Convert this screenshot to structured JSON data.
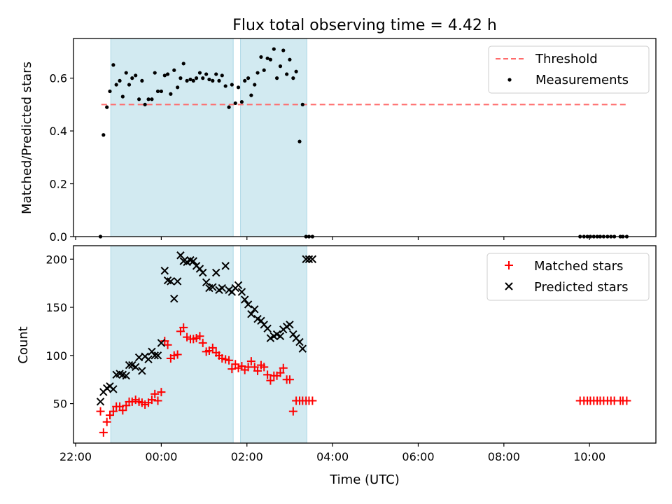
{
  "title": "Flux total observing time = 4.42 h",
  "xlabel": "Time (UTC)",
  "colors": {
    "background": "#ffffff",
    "shade": "#add8e6",
    "threshold": "#ff6b6b",
    "measurement": "#000000",
    "matched": "#ff0000",
    "predicted": "#000000"
  },
  "chart_data": [
    {
      "type": "scatter",
      "title": "Flux total observing time = 4.42 h",
      "ylabel": "Matched/Predicted stars",
      "xlabel": "",
      "x_unit": "hours since 00:00 UTC",
      "xlim": [
        -2.05,
        11.55
      ],
      "ylim": [
        0,
        0.75
      ],
      "yticks": [
        0.0,
        0.2,
        0.4,
        0.6
      ],
      "ytick_labels": [
        "0.0",
        "0.2",
        "0.4",
        "0.6"
      ],
      "grid": false,
      "legend": {
        "placement": "top-right",
        "entries": [
          "Threshold",
          "Measurements"
        ]
      },
      "threshold": {
        "name": "Threshold",
        "y": 0.5,
        "x_start": -1.4,
        "x_end": 10.9,
        "style": "dashed"
      },
      "shaded_regions": [
        [
          -1.18,
          1.68
        ],
        [
          1.85,
          3.4
        ]
      ],
      "series": [
        {
          "name": "Measurements",
          "marker": "dot",
          "x": [
            -1.42,
            -1.35,
            -1.27,
            -1.2,
            -1.12,
            -1.05,
            -0.97,
            -0.9,
            -0.82,
            -0.75,
            -0.68,
            -0.6,
            -0.52,
            -0.45,
            -0.38,
            -0.3,
            -0.22,
            -0.15,
            -0.08,
            0.0,
            0.08,
            0.15,
            0.22,
            0.3,
            0.38,
            0.45,
            0.52,
            0.6,
            0.68,
            0.75,
            0.82,
            0.9,
            0.97,
            1.05,
            1.12,
            1.2,
            1.28,
            1.35,
            1.42,
            1.5,
            1.58,
            1.65,
            1.73,
            1.8,
            1.88,
            1.95,
            2.03,
            2.1,
            2.18,
            2.25,
            2.33,
            2.4,
            2.48,
            2.55,
            2.63,
            2.7,
            2.78,
            2.85,
            2.93,
            3.0,
            3.08,
            3.15,
            3.23,
            3.3,
            3.38,
            3.45,
            3.53,
            9.78,
            9.87,
            9.95,
            10.02,
            10.1,
            10.18,
            10.25,
            10.33,
            10.42,
            10.5,
            10.58,
            10.72,
            10.78,
            10.87
          ],
          "y": [
            0.0,
            0.385,
            0.49,
            0.55,
            0.65,
            0.575,
            0.59,
            0.53,
            0.62,
            0.575,
            0.6,
            0.61,
            0.52,
            0.59,
            0.5,
            0.52,
            0.52,
            0.62,
            0.55,
            0.55,
            0.61,
            0.615,
            0.54,
            0.63,
            0.565,
            0.6,
            0.655,
            0.59,
            0.595,
            0.59,
            0.6,
            0.62,
            0.6,
            0.615,
            0.595,
            0.59,
            0.615,
            0.59,
            0.61,
            0.57,
            0.49,
            0.575,
            0.505,
            0.565,
            0.51,
            0.59,
            0.6,
            0.535,
            0.575,
            0.62,
            0.68,
            0.63,
            0.675,
            0.67,
            0.71,
            0.6,
            0.645,
            0.705,
            0.615,
            0.67,
            0.6,
            0.625,
            0.36,
            0.5,
            0.0,
            0.0,
            0.0,
            0.0,
            0.0,
            0.0,
            0.0,
            0.0,
            0.0,
            0.0,
            0.0,
            0.0,
            0.0,
            0.0,
            0.0,
            0.0,
            0.0
          ]
        }
      ]
    },
    {
      "type": "scatter",
      "ylabel": "Count",
      "xlabel": "Time (UTC)",
      "x_unit": "hours since 00:00 UTC",
      "xlim": [
        -2.05,
        11.55
      ],
      "ylim": [
        9,
        214
      ],
      "yticks": [
        50,
        100,
        150,
        200
      ],
      "ytick_labels": [
        "50",
        "100",
        "150",
        "200"
      ],
      "xticks": [
        -2,
        0,
        2,
        4,
        6,
        8,
        10
      ],
      "xtick_labels": [
        "22:00",
        "00:00",
        "02:00",
        "04:00",
        "06:00",
        "08:00",
        "10:00"
      ],
      "grid": false,
      "legend": {
        "placement": "top-right",
        "entries": [
          "Matched stars",
          "Predicted stars"
        ]
      },
      "shaded_regions": [
        [
          -1.18,
          1.68
        ],
        [
          1.85,
          3.4
        ]
      ],
      "series": [
        {
          "name": "Matched stars",
          "marker": "plus",
          "x": [
            -1.42,
            -1.35,
            -1.27,
            -1.2,
            -1.12,
            -1.05,
            -0.97,
            -0.9,
            -0.82,
            -0.75,
            -0.68,
            -0.6,
            -0.52,
            -0.45,
            -0.38,
            -0.3,
            -0.22,
            -0.15,
            -0.08,
            0.0,
            0.08,
            0.15,
            0.22,
            0.3,
            0.38,
            0.45,
            0.52,
            0.6,
            0.68,
            0.75,
            0.82,
            0.9,
            0.97,
            1.05,
            1.12,
            1.2,
            1.28,
            1.35,
            1.42,
            1.5,
            1.58,
            1.65,
            1.73,
            1.8,
            1.88,
            1.95,
            2.03,
            2.1,
            2.18,
            2.25,
            2.33,
            2.4,
            2.48,
            2.55,
            2.63,
            2.7,
            2.78,
            2.85,
            2.93,
            3.0,
            3.08,
            3.15,
            3.23,
            3.3,
            3.38,
            3.45,
            3.53,
            9.78,
            9.87,
            9.95,
            10.02,
            10.1,
            10.18,
            10.25,
            10.33,
            10.42,
            10.5,
            10.58,
            10.72,
            10.78,
            10.87
          ],
          "y": [
            42,
            20,
            31,
            38,
            42,
            47,
            47,
            43,
            48,
            52,
            52,
            54,
            52,
            51,
            49,
            51,
            54,
            60,
            53,
            62,
            115,
            111,
            97,
            100,
            101,
            125,
            129,
            119,
            117,
            117,
            118,
            120,
            113,
            104,
            105,
            108,
            103,
            100,
            97,
            96,
            95,
            86,
            91,
            87,
            89,
            85,
            88,
            94,
            88,
            84,
            90,
            88,
            80,
            74,
            79,
            79,
            82,
            87,
            75,
            75,
            42,
            53,
            53,
            53,
            53,
            53,
            53,
            53,
            53,
            53,
            53,
            53,
            53,
            53,
            53,
            53,
            53,
            53,
            53,
            53,
            53
          ]
        },
        {
          "name": "Predicted stars",
          "marker": "x",
          "x": [
            -1.42,
            -1.35,
            -1.27,
            -1.2,
            -1.12,
            -1.05,
            -0.97,
            -0.9,
            -0.82,
            -0.75,
            -0.68,
            -0.6,
            -0.52,
            -0.45,
            -0.38,
            -0.3,
            -0.22,
            -0.15,
            -0.08,
            0.0,
            0.08,
            0.15,
            0.22,
            0.3,
            0.38,
            0.45,
            0.52,
            0.6,
            0.68,
            0.75,
            0.82,
            0.9,
            0.97,
            1.05,
            1.12,
            1.2,
            1.28,
            1.35,
            1.42,
            1.5,
            1.58,
            1.65,
            1.73,
            1.8,
            1.88,
            1.95,
            2.03,
            2.1,
            2.18,
            2.25,
            2.33,
            2.4,
            2.48,
            2.55,
            2.63,
            2.7,
            2.78,
            2.85,
            2.93,
            3.0,
            3.08,
            3.15,
            3.23,
            3.3,
            3.38,
            3.45,
            3.53
          ],
          "y": [
            52,
            62,
            66,
            68,
            65,
            80,
            81,
            80,
            79,
            90,
            90,
            88,
            98,
            84,
            99,
            96,
            104,
            100,
            100,
            113,
            188,
            178,
            177,
            159,
            177,
            204,
            198,
            197,
            199,
            198,
            193,
            190,
            186,
            176,
            170,
            171,
            186,
            168,
            170,
            193,
            168,
            166,
            170,
            173,
            166,
            158,
            153,
            143,
            148,
            138,
            136,
            132,
            128,
            118,
            120,
            122,
            120,
            127,
            130,
            132,
            122,
            118,
            114,
            107,
            200,
            200,
            200
          ]
        }
      ]
    }
  ]
}
